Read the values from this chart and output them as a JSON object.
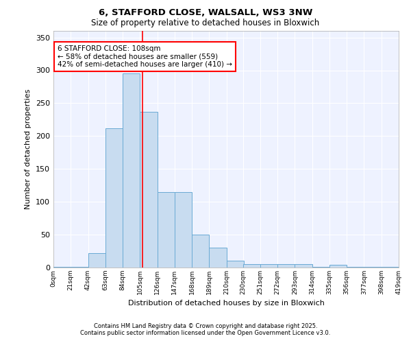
{
  "title1": "6, STAFFORD CLOSE, WALSALL, WS3 3NW",
  "title2": "Size of property relative to detached houses in Bloxwich",
  "xlabel": "Distribution of detached houses by size in Bloxwich",
  "ylabel": "Number of detached properties",
  "bins": [
    0,
    21,
    42,
    63,
    84,
    105,
    126,
    147,
    168,
    189,
    210,
    230,
    251,
    272,
    293,
    314,
    335,
    356,
    377,
    398,
    419
  ],
  "counts": [
    1,
    1,
    22,
    212,
    295,
    237,
    115,
    115,
    50,
    30,
    10,
    5,
    5,
    5,
    5,
    1,
    4,
    1,
    1,
    1
  ],
  "bar_color": "#c8dcf0",
  "bar_edge_color": "#6aaad4",
  "red_line_x": 108,
  "annotation_text": "6 STAFFORD CLOSE: 108sqm\n← 58% of detached houses are smaller (559)\n42% of semi-detached houses are larger (410) →",
  "annotation_box_color": "white",
  "annotation_box_edge_color": "red",
  "ylim": [
    0,
    360
  ],
  "yticks": [
    0,
    50,
    100,
    150,
    200,
    250,
    300,
    350
  ],
  "background_color": "#eef2ff",
  "footer1": "Contains HM Land Registry data © Crown copyright and database right 2025.",
  "footer2": "Contains public sector information licensed under the Open Government Licence v3.0."
}
